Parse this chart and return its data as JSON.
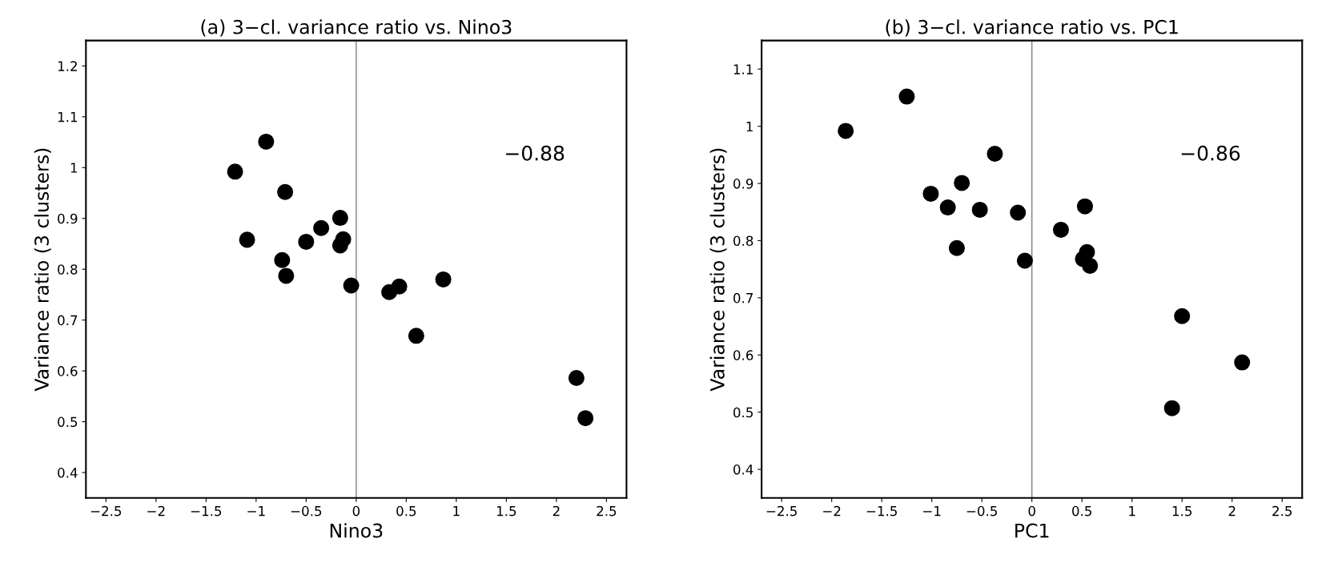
{
  "chart_data": [
    {
      "type": "scatter",
      "title": "(a) 3−cl. variance ratio vs. Nino3",
      "xlabel": "Nino3",
      "ylabel": "Variance ratio (3 clusters)",
      "x": [
        -1.21,
        -0.9,
        -0.71,
        -1.09,
        -0.35,
        -0.16,
        -0.13,
        -0.16,
        -0.5,
        -0.74,
        -0.7,
        -0.05,
        0.33,
        0.43,
        0.87,
        0.6,
        2.2,
        2.29
      ],
      "series": [
        {
          "color": "#000000",
          "values": [
            0.992,
            1.051,
            0.952,
            0.858,
            0.881,
            0.901,
            0.859,
            0.847,
            0.854,
            0.818,
            0.787,
            0.768,
            0.755,
            0.766,
            0.78,
            0.669,
            0.586,
            0.507
          ]
        }
      ],
      "xlim": [
        -2.7,
        2.7
      ],
      "ylim": [
        0.35,
        1.25
      ],
      "xticks": [
        {
          "value": -2.5,
          "label": "−2.5"
        },
        {
          "value": -2,
          "label": "−2"
        },
        {
          "value": -1.5,
          "label": "−1.5"
        },
        {
          "value": -1,
          "label": "−1"
        },
        {
          "value": -0.5,
          "label": "−0.5"
        },
        0,
        0.5,
        1,
        1.5,
        2,
        2.5
      ],
      "yticks": [
        0.4,
        0.5,
        0.6,
        0.7,
        0.8,
        0.9,
        1,
        1.1,
        1.2
      ],
      "ref_lines": [
        {
          "axis": "x",
          "value": 0,
          "color": "#808080"
        }
      ],
      "annotations": [
        "−0.88"
      ],
      "marker": "circle",
      "grid": false,
      "legend": false
    },
    {
      "type": "scatter",
      "title": "(b) 3−cl. variance ratio vs. PC1",
      "xlabel": "PC1",
      "ylabel": "Variance ratio (3 clusters)",
      "x": [
        -1.86,
        -1.25,
        -0.37,
        -0.7,
        -1.01,
        -0.84,
        -0.52,
        -0.14,
        -0.75,
        -0.07,
        0.29,
        0.53,
        0.55,
        0.51,
        0.58,
        1.5,
        2.1,
        1.4
      ],
      "series": [
        {
          "color": "#000000",
          "values": [
            0.992,
            1.052,
            0.952,
            0.901,
            0.882,
            0.858,
            0.854,
            0.849,
            0.787,
            0.765,
            0.819,
            0.86,
            0.78,
            0.768,
            0.756,
            0.668,
            0.587,
            0.507
          ]
        }
      ],
      "xlim": [
        -2.7,
        2.7
      ],
      "ylim": [
        0.35,
        1.15
      ],
      "xticks": [
        {
          "value": -2.5,
          "label": "−2.5"
        },
        {
          "value": -2,
          "label": "−2"
        },
        {
          "value": -1.5,
          "label": "−1.5"
        },
        {
          "value": -1,
          "label": "−1"
        },
        {
          "value": -0.5,
          "label": "−0.5"
        },
        0,
        0.5,
        1,
        1.5,
        2,
        2.5
      ],
      "yticks": [
        0.4,
        0.5,
        0.6,
        0.7,
        0.8,
        0.9,
        1,
        1.1
      ],
      "ref_lines": [
        {
          "axis": "x",
          "value": 0,
          "color": "#808080"
        }
      ],
      "annotations": [
        "−0.86"
      ],
      "marker": "circle",
      "grid": false,
      "legend": false
    }
  ]
}
